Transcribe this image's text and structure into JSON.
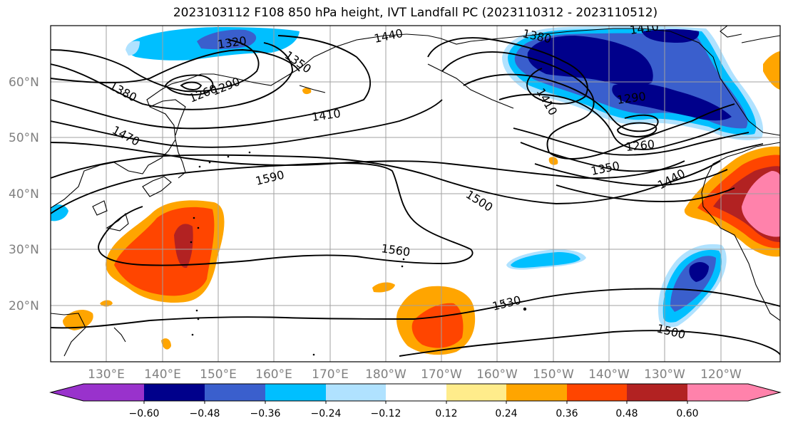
{
  "title": "2023103112 F108 850 hPa height, IVT Landfall PC (2023110312 - 2023110512)",
  "map": {
    "lat_labels": [
      "60°N",
      "50°N",
      "40°N",
      "30°N",
      "20°N"
    ],
    "lon_labels": [
      "130°E",
      "140°E",
      "150°E",
      "160°E",
      "170°E",
      "180°W",
      "170°W",
      "160°W",
      "150°W",
      "140°W",
      "130°W",
      "120°W"
    ],
    "contour_labels": [
      "1320",
      "1350",
      "1440",
      "1380",
      "1410",
      "1410",
      "1380",
      "1470",
      "1260",
      "1290",
      "1290",
      "1260",
      "1350",
      "1440",
      "1590",
      "1500",
      "1560",
      "1530",
      "1500",
      "1410"
    ]
  },
  "colorbar": {
    "tick_labels": [
      "−0.60",
      "−0.48",
      "−0.36",
      "−0.24",
      "−0.12",
      "0.12",
      "0.24",
      "0.36",
      "0.48",
      "0.60"
    ],
    "colors": [
      "#9932cc",
      "#00008b",
      "#3a5fcd",
      "#00bfff",
      "#b0e2ff",
      "#ffffff",
      "#ffec8b",
      "#ffa500",
      "#ff4500",
      "#b22222",
      "#ff82ab"
    ]
  }
}
